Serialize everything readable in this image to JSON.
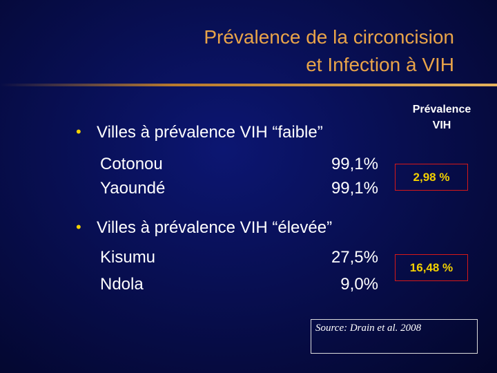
{
  "header": {
    "title_lines": [
      "Prévalence de la circoncision",
      "et Infection à VIH"
    ]
  },
  "groups": [
    {
      "heading": "Villes à prévalence VIH “faible”",
      "rows": [
        [
          "Cotonou",
          "99,1%"
        ],
        [
          "Yaoundé",
          "99,1%"
        ]
      ],
      "hiv_prevalence": "2,98 %"
    },
    {
      "heading": "Villes à prévalence VIH “élevée”",
      "rows": [
        [
          "Kisumu",
          "27,5%"
        ],
        [
          "Ndola",
          "9,0%"
        ]
      ],
      "hiv_prevalence": "16,48 %"
    }
  ],
  "column_header": [
    "Prévalence",
    "VIH"
  ],
  "source": "Source: Drain et al. 2008"
}
